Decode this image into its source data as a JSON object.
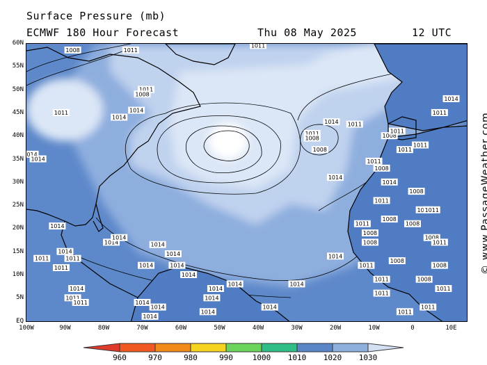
{
  "title": {
    "line1": "Surface Pressure (mb)",
    "line2_left": "ECMWF 180 Hour Forecast",
    "line2_mid": "Thu 08 May 2025",
    "line2_right": "12 UTC"
  },
  "credit": "© www.PassageWeather.com",
  "axes": {
    "lat_labels": [
      "60N",
      "55N",
      "50N",
      "45N",
      "40N",
      "35N",
      "30N",
      "25N",
      "20N",
      "15N",
      "10N",
      "5N",
      "EQ"
    ],
    "lon_labels": [
      "100W",
      "90W",
      "80W",
      "70W",
      "60W",
      "50W",
      "40W",
      "30W",
      "20W",
      "10W",
      "0",
      "10E"
    ]
  },
  "colorbar": {
    "labels": [
      "960",
      "970",
      "980",
      "990",
      "1000",
      "1010",
      "1020",
      "1030"
    ],
    "colors": [
      "#e03a2c",
      "#f08a1a",
      "#f6d41e",
      "#6cd35c",
      "#2fbf86",
      "#5a86c8",
      "#8fb0dc",
      "#d2e0f2"
    ]
  },
  "map": {
    "colors": {
      "ocean_low": "#5d88c9",
      "ocean_mid": "#8eaede",
      "ocean_high": "#bfd2ee",
      "ocean_peak": "#dbe6f6",
      "center": "#ffffff",
      "land_low": "#4f7cc2"
    },
    "isobar_labels": [
      {
        "text": "1008",
        "lon": -88,
        "lat": 58.5
      },
      {
        "text": "1011",
        "lon": -73,
        "lat": 58.5
      },
      {
        "text": "1011",
        "lon": -40,
        "lat": 59.5
      },
      {
        "text": "1011",
        "lon": -69,
        "lat": 50
      },
      {
        "text": "1008",
        "lon": -70,
        "lat": 49
      },
      {
        "text": "1014",
        "lon": -71.5,
        "lat": 45.5
      },
      {
        "text": "1014",
        "lon": -76,
        "lat": 44
      },
      {
        "text": "1011",
        "lon": -91,
        "lat": 45
      },
      {
        "text": "1011",
        "lon": -26,
        "lat": 40.5
      },
      {
        "text": "1008",
        "lon": -26,
        "lat": 39.5
      },
      {
        "text": "1008",
        "lon": -24,
        "lat": 37
      },
      {
        "text": "1014",
        "lon": -21,
        "lat": 43
      },
      {
        "text": "1011",
        "lon": -15,
        "lat": 42.5
      },
      {
        "text": "1014",
        "lon": -99,
        "lat": 36
      },
      {
        "text": "1014",
        "lon": -97,
        "lat": 35
      },
      {
        "text": "1014",
        "lon": -20,
        "lat": 31
      },
      {
        "text": "1014",
        "lon": -92,
        "lat": 20.5
      },
      {
        "text": "1014",
        "lon": -66,
        "lat": 16.5
      },
      {
        "text": "1014",
        "lon": -62,
        "lat": 14.5
      },
      {
        "text": "1014",
        "lon": -78,
        "lat": 17
      },
      {
        "text": "1014",
        "lon": -76,
        "lat": 18
      },
      {
        "text": "1011",
        "lon": -91,
        "lat": 11.5
      },
      {
        "text": "1011",
        "lon": -88,
        "lat": 13.5
      },
      {
        "text": "1014",
        "lon": -90,
        "lat": 15
      },
      {
        "text": "1011",
        "lon": -96,
        "lat": 13.5
      },
      {
        "text": "1014",
        "lon": -87,
        "lat": 7
      },
      {
        "text": "1014",
        "lon": -69,
        "lat": 12
      },
      {
        "text": "1014",
        "lon": -61,
        "lat": 12
      },
      {
        "text": "1014",
        "lon": -58,
        "lat": 10
      },
      {
        "text": "1014",
        "lon": -46,
        "lat": 8
      },
      {
        "text": "1014",
        "lon": -51,
        "lat": 7
      },
      {
        "text": "1014",
        "lon": -52,
        "lat": 5
      },
      {
        "text": "1014",
        "lon": -30,
        "lat": 8
      },
      {
        "text": "1014",
        "lon": -53,
        "lat": 2
      },
      {
        "text": "1014",
        "lon": -37,
        "lat": 3
      },
      {
        "text": "1014",
        "lon": -70,
        "lat": 4
      },
      {
        "text": "1014",
        "lon": -66,
        "lat": 3
      },
      {
        "text": "1011",
        "lon": -88,
        "lat": 5
      },
      {
        "text": "1011",
        "lon": -86,
        "lat": 4
      },
      {
        "text": "1014",
        "lon": -68,
        "lat": 1
      },
      {
        "text": "1014",
        "lon": -20,
        "lat": 14
      },
      {
        "text": "1011",
        "lon": -10,
        "lat": 34.5
      },
      {
        "text": "1008",
        "lon": -8,
        "lat": 33
      },
      {
        "text": "1014",
        "lon": -6,
        "lat": 30
      },
      {
        "text": "1011",
        "lon": -8,
        "lat": 26
      },
      {
        "text": "1011",
        "lon": -13,
        "lat": 21
      },
      {
        "text": "1008",
        "lon": -11,
        "lat": 19
      },
      {
        "text": "1008",
        "lon": -6,
        "lat": 22
      },
      {
        "text": "1008",
        "lon": -11,
        "lat": 17
      },
      {
        "text": "1011",
        "lon": -12,
        "lat": 12
      },
      {
        "text": "1008",
        "lon": -4,
        "lat": 13
      },
      {
        "text": "1011",
        "lon": -8,
        "lat": 9
      },
      {
        "text": "1011",
        "lon": -8,
        "lat": 6
      },
      {
        "text": "1008",
        "lon": 3,
        "lat": 9
      },
      {
        "text": "1011",
        "lon": -2,
        "lat": 2
      },
      {
        "text": "1008",
        "lon": 0,
        "lat": 21
      },
      {
        "text": "1008",
        "lon": 1,
        "lat": 28
      },
      {
        "text": "1008",
        "lon": 3,
        "lat": 24
      },
      {
        "text": "1011",
        "lon": 5,
        "lat": 24
      },
      {
        "text": "1008",
        "lon": 5,
        "lat": 18
      },
      {
        "text": "1011",
        "lon": 7,
        "lat": 17
      },
      {
        "text": "1008",
        "lon": 7,
        "lat": 12
      },
      {
        "text": "1011",
        "lon": 8,
        "lat": 7
      },
      {
        "text": "1011",
        "lon": 4,
        "lat": 3
      },
      {
        "text": "1014",
        "lon": 10,
        "lat": 48
      },
      {
        "text": "1011",
        "lon": 7,
        "lat": 45
      },
      {
        "text": "1008",
        "lon": -6,
        "lat": 40
      },
      {
        "text": "1011",
        "lon": -2,
        "lat": 37
      },
      {
        "text": "1011",
        "lon": 2,
        "lat": 38
      },
      {
        "text": "1011",
        "lon": -4,
        "lat": 41
      }
    ]
  }
}
